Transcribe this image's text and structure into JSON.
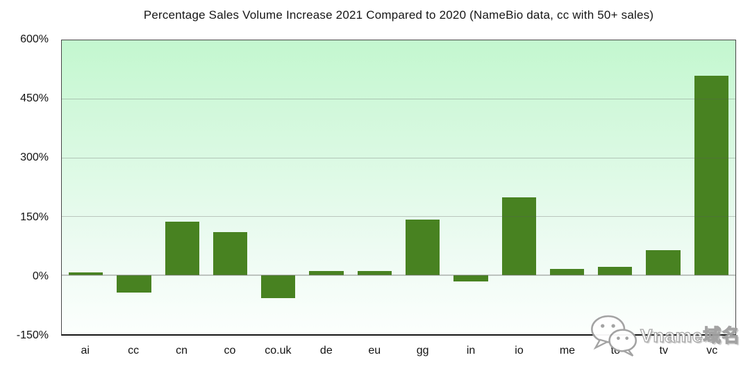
{
  "watermark": {
    "text": "Vname域名",
    "icon": "wechat-icon"
  },
  "chart_data": {
    "type": "bar",
    "title": "Percentage Sales Volume Increase 2021 Compared to 2020 (NameBio data, cc with 50+ sales)",
    "categories": [
      "ai",
      "cc",
      "cn",
      "co",
      "co.uk",
      "de",
      "eu",
      "gg",
      "in",
      "io",
      "me",
      "to",
      "tv",
      "vc"
    ],
    "values": [
      8,
      -44,
      137,
      110,
      -57,
      12,
      11,
      143,
      -15,
      200,
      17,
      22,
      65,
      510
    ],
    "xlabel": "",
    "ylabel": "",
    "ylim": [
      -150,
      600
    ],
    "yticks": [
      600,
      450,
      300,
      150,
      0,
      -150
    ],
    "ytick_labels": [
      "600%",
      "450%",
      "300%",
      "150%",
      "0%",
      "-150%"
    ],
    "grid": true,
    "legend_position": "none",
    "bar_color": "#488221",
    "grid_color": "#8c8c8c",
    "axis_color": "#474747",
    "plot_bg_top": "#c3f7cf",
    "plot_bg_mid": "#eefbf3",
    "plot_bg_bottom": "#fcfffd"
  }
}
